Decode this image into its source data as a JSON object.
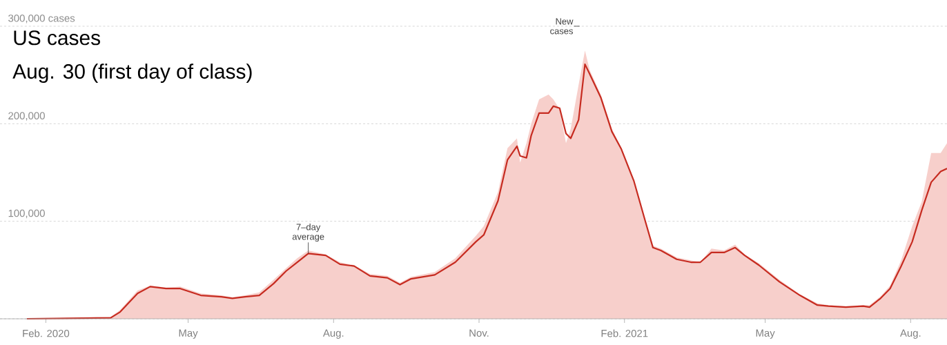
{
  "chart_data": {
    "type": "line",
    "title": "US cases",
    "subtitle": "Aug. 30 (first day of class)",
    "xlim": [
      "2020-01-03",
      "2021-08-24"
    ],
    "ylim": [
      0,
      300000
    ],
    "xticks": [
      {
        "value": "2020-02-01",
        "label": "Feb. 2020"
      },
      {
        "value": "2020-05-01",
        "label": "May"
      },
      {
        "value": "2020-08-01",
        "label": "Aug."
      },
      {
        "value": "2020-11-01",
        "label": "Nov."
      },
      {
        "value": "2021-02-01",
        "label": "Feb. 2021"
      },
      {
        "value": "2021-05-01",
        "label": "May"
      },
      {
        "value": "2021-08-01",
        "label": "Aug."
      }
    ],
    "yticks": [
      {
        "value": 0,
        "label": null
      },
      {
        "value": 100000,
        "label": "100,000"
      },
      {
        "value": 200000,
        "label": "200,000"
      },
      {
        "value": 300000,
        "label": "300,000 cases"
      }
    ],
    "grid": "y",
    "annotations": [
      {
        "text": "7–day average",
        "x": "2020-07-16",
        "y": 67000
      },
      "New cases"
    ],
    "x": [
      "2020-01-20",
      "2020-03-13",
      "2020-03-19",
      "2020-03-30",
      "2020-04-07",
      "2020-04-17",
      "2020-04-26",
      "2020-05-09",
      "2020-05-22",
      "2020-05-29",
      "2020-06-06",
      "2020-06-15",
      "2020-06-24",
      "2020-07-02",
      "2020-07-09",
      "2020-07-16",
      "2020-07-27",
      "2020-08-05",
      "2020-08-14",
      "2020-08-24",
      "2020-09-04",
      "2020-09-12",
      "2020-09-19",
      "2020-10-04",
      "2020-10-17",
      "2020-10-30",
      "2020-11-04",
      "2020-11-13",
      "2020-11-19",
      "2020-11-25",
      "2020-11-27",
      "2020-12-01",
      "2020-12-04",
      "2020-12-09",
      "2020-12-15",
      "2020-12-18",
      "2020-12-22",
      "2020-12-26",
      "2020-12-29",
      "2021-01-03",
      "2021-01-07",
      "2021-01-10",
      "2021-01-17",
      "2021-01-24",
      "2021-01-30",
      "2021-02-07",
      "2021-02-14",
      "2021-02-19",
      "2021-02-24",
      "2021-03-06",
      "2021-03-15",
      "2021-03-21",
      "2021-03-28",
      "2021-04-05",
      "2021-04-12",
      "2021-04-18",
      "2021-04-27",
      "2021-05-10",
      "2021-05-23",
      "2021-06-03",
      "2021-06-10",
      "2021-06-21",
      "2021-07-02",
      "2021-07-06",
      "2021-07-13",
      "2021-07-19",
      "2021-07-26",
      "2021-08-02",
      "2021-08-08",
      "2021-08-14",
      "2021-08-20",
      "2021-08-24"
    ],
    "series": [
      {
        "type": "area",
        "color": "#f7cfcb",
        "values": [
          0,
          2000,
          9000,
          29000,
          34000,
          32000,
          33000,
          26000,
          24000,
          22000,
          24000,
          27000,
          40000,
          52000,
          62000,
          70000,
          66000,
          58000,
          55000,
          46000,
          44000,
          37000,
          43000,
          48000,
          62000,
          85000,
          95000,
          130000,
          175000,
          185000,
          160000,
          180000,
          200000,
          225000,
          230000,
          225000,
          215000,
          180000,
          195000,
          240000,
          275000,
          255000,
          230000,
          195000,
          175000,
          140000,
          100000,
          75000,
          72000,
          63000,
          60000,
          58000,
          72000,
          70000,
          76000,
          66000,
          57000,
          40000,
          25000,
          16000,
          14000,
          13000,
          14000,
          14000,
          23000,
          34000,
          60000,
          95000,
          120000,
          170000,
          170000,
          180000
        ]
      },
      {
        "type": "line",
        "color": "#c62b20",
        "values": [
          0,
          1000,
          7000,
          26000,
          33000,
          31000,
          31000,
          24000,
          22500,
          21000,
          22500,
          24000,
          36000,
          49000,
          58000,
          67000,
          65000,
          56000,
          54000,
          44000,
          42000,
          35000,
          41000,
          45000,
          58000,
          79000,
          86000,
          121000,
          163000,
          177000,
          167000,
          165000,
          188000,
          211000,
          211000,
          218000,
          216000,
          190000,
          185000,
          204000,
          261000,
          251000,
          227000,
          192000,
          174000,
          141000,
          101000,
          73000,
          70000,
          61000,
          58000,
          58000,
          68000,
          68000,
          73000,
          65000,
          55000,
          38000,
          24000,
          14000,
          13000,
          12000,
          13000,
          12000,
          21000,
          31000,
          54000,
          79000,
          111000,
          140000,
          151000,
          154000
        ]
      }
    ]
  }
}
